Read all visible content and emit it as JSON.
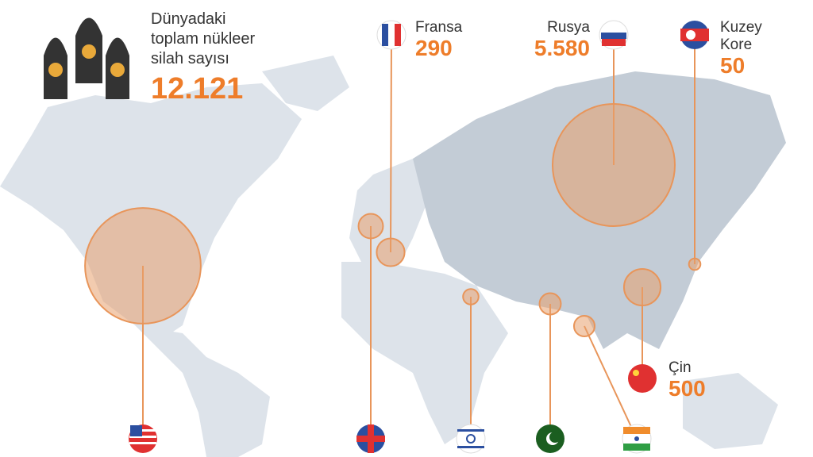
{
  "header": {
    "title_lines": [
      "Dünyadaki",
      "toplam nükleer",
      "silah sayısı"
    ],
    "total": {
      "value": 12121,
      "label": "12.121"
    }
  },
  "countries": [
    {
      "name_lines": [
        "Fransa"
      ],
      "value": 290,
      "label": "290"
    },
    {
      "name_lines": [
        "Rusya"
      ],
      "value": 5580,
      "label": "5.580"
    },
    {
      "name_lines": [
        "Kuzey",
        "Kore"
      ],
      "value": 50,
      "label": "50"
    },
    {
      "name_lines": [
        "Çin"
      ],
      "value": 500,
      "label": "500"
    }
  ],
  "unlabeled_circles": [
    {
      "value": 5000
    },
    {
      "value": 225
    },
    {
      "value": 90
    },
    {
      "value": 170
    },
    {
      "value": 160
    }
  ]
}
